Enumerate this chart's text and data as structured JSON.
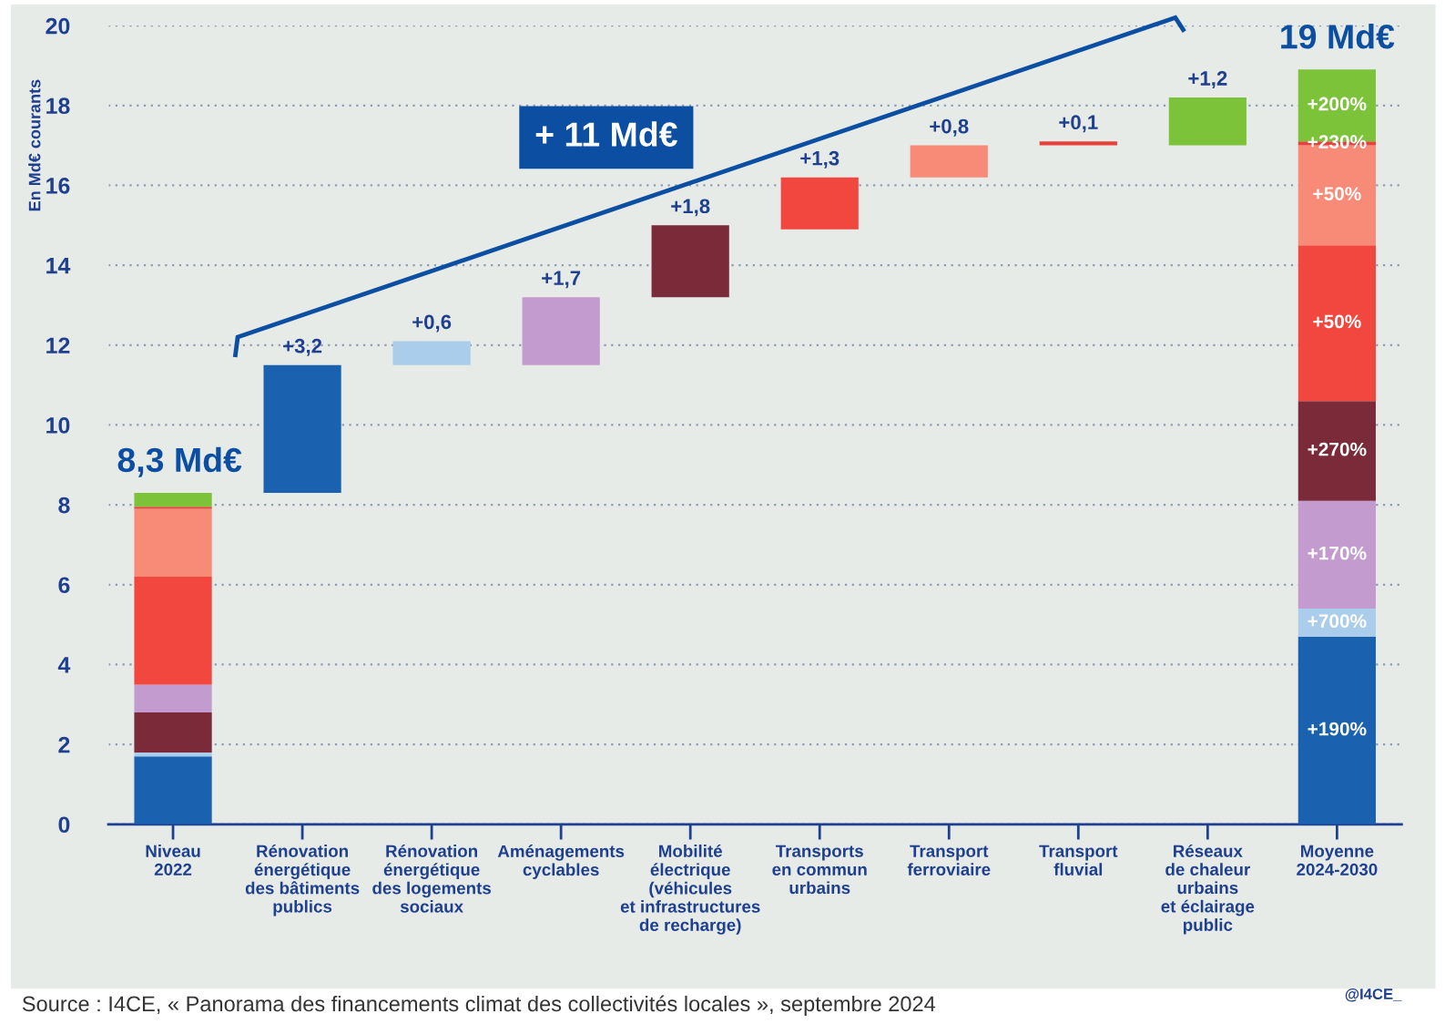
{
  "chart_data": {
    "type": "bar",
    "ylabel": "En Md€ courants",
    "categories": [
      "Niveau\n2022",
      "Rénovation\nénergétique\ndes bâtiments\npublics",
      "Rénovation\nénergétique\ndes logements\nsociaux",
      "Aménagements\ncyclables",
      "Mobilité\nélectrique\n(véhicules\net infrastructures\nde recharge)",
      "Transports\nen commun\nurbains",
      "Transport\nferroviaire",
      "Transport\nfluvial",
      "Réseaux\nde chaleur\nurbains\net éclairage\npublic",
      "Moyenne\n2024-2030"
    ],
    "series": [
      {
        "color": "#1a62b0",
        "values": [
          1.7,
          3.2,
          null,
          null,
          null,
          null,
          null,
          null,
          null,
          4.7
        ],
        "base": [
          0,
          8.3,
          null,
          null,
          null,
          null,
          null,
          null,
          null,
          0
        ],
        "value_labels": [
          null,
          "+3,2",
          null,
          null,
          null,
          null,
          null,
          null,
          null,
          null
        ]
      },
      {
        "color": "#a9cdea",
        "values": [
          0.1,
          null,
          0.6,
          null,
          null,
          null,
          null,
          null,
          null,
          0.7
        ],
        "base": [
          1.7,
          null,
          11.5,
          null,
          null,
          null,
          null,
          null,
          null,
          4.7
        ],
        "value_labels": [
          null,
          null,
          "+0,6",
          null,
          null,
          null,
          null,
          null,
          null,
          null
        ]
      },
      {
        "color": "#c49bce",
        "values": [
          0.7,
          null,
          null,
          1.7,
          null,
          null,
          null,
          null,
          null,
          2.7
        ],
        "base": [
          2.8,
          null,
          null,
          11.5,
          null,
          null,
          null,
          null,
          null,
          5.4
        ],
        "value_labels": [
          null,
          null,
          null,
          "+1,7",
          null,
          null,
          null,
          null,
          null,
          null
        ]
      },
      {
        "color": "#7b2a3a",
        "values": [
          1.0,
          null,
          null,
          null,
          1.8,
          null,
          null,
          null,
          null,
          2.5
        ],
        "base": [
          1.8,
          null,
          null,
          null,
          13.2,
          null,
          null,
          null,
          null,
          8.1
        ],
        "value_labels": [
          null,
          null,
          null,
          null,
          "+1,8",
          null,
          null,
          null,
          null,
          null
        ]
      },
      {
        "color": "#f2473f",
        "values": [
          2.7,
          null,
          null,
          null,
          null,
          1.3,
          null,
          null,
          null,
          3.9
        ],
        "base": [
          3.5,
          null,
          null,
          null,
          null,
          14.9,
          null,
          null,
          null,
          10.6
        ],
        "value_labels": [
          null,
          null,
          null,
          null,
          null,
          "+1,3",
          null,
          null,
          null,
          null
        ]
      },
      {
        "color": "#f88a78",
        "values": [
          1.7,
          null,
          null,
          null,
          null,
          null,
          0.8,
          null,
          null,
          2.5
        ],
        "base": [
          6.2,
          null,
          null,
          null,
          null,
          null,
          16.2,
          null,
          null,
          14.5
        ],
        "value_labels": [
          null,
          null,
          null,
          null,
          null,
          null,
          "+0,8",
          null,
          null,
          null
        ]
      },
      {
        "color": "#e8403a",
        "values": [
          0.05,
          null,
          null,
          null,
          null,
          null,
          null,
          0.1,
          null,
          0.1
        ],
        "base": [
          7.9,
          null,
          null,
          null,
          null,
          null,
          null,
          17.0,
          null,
          17.0
        ],
        "value_labels": [
          null,
          null,
          null,
          null,
          null,
          null,
          null,
          "+0,1",
          null,
          null
        ]
      },
      {
        "color": "#7cc33a",
        "values": [
          0.35,
          null,
          null,
          null,
          null,
          null,
          null,
          null,
          1.2,
          1.8
        ],
        "base": [
          7.95,
          null,
          null,
          null,
          null,
          null,
          null,
          null,
          17.0,
          17.1
        ],
        "value_labels": [
          null,
          null,
          null,
          null,
          null,
          null,
          null,
          null,
          "+1,2",
          null
        ]
      }
    ],
    "totals": [
      "8,3 Md€",
      null,
      null,
      null,
      null,
      null,
      null,
      null,
      null,
      "19 Md€"
    ],
    "ylim": [
      0,
      20
    ],
    "yticks": [
      0,
      2,
      4,
      6,
      8,
      10,
      12,
      14,
      16,
      18,
      20
    ],
    "grid": "y",
    "legend": false,
    "annotations": [
      "+ 11 Md€",
      "Source : I4CE, « Panorama des financements climat des collectivités locales », septembre 2024",
      "@I4CE_",
      "+190%",
      "+700%",
      "+170%",
      "+270%",
      "+50%",
      "+50%",
      "+230%",
      "+200%"
    ]
  }
}
